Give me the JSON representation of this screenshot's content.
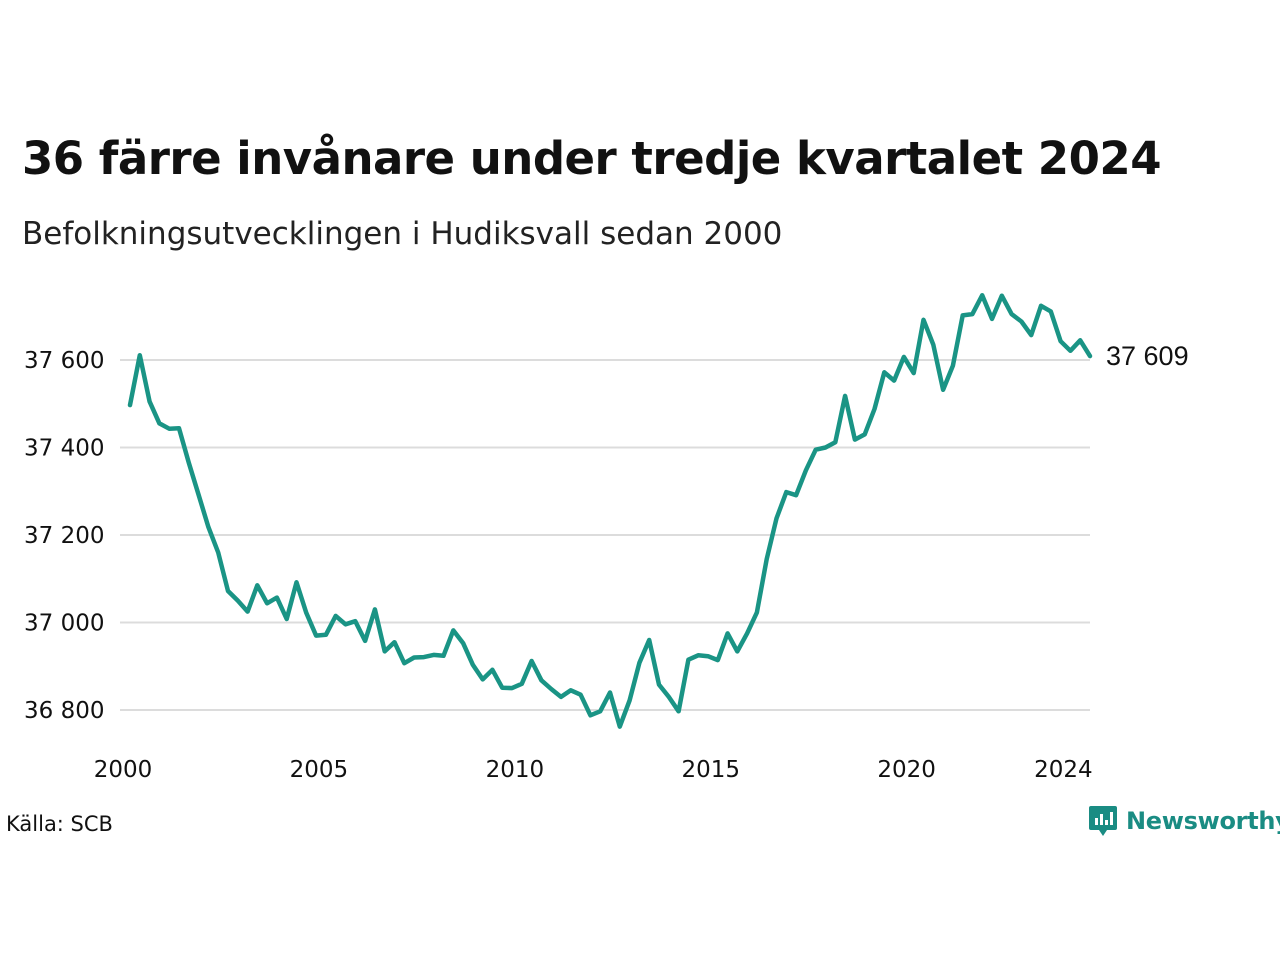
{
  "header": {
    "title": "36 färre invånare under tredje kvartalet 2024",
    "subtitle": "Befolkningsutvecklingen i Hudiksvall sedan 2000"
  },
  "footer": {
    "source": "Källa: SCB",
    "brand": "Newsworthy",
    "brand_icon": "newsworthy-logo-icon",
    "brand_color": "#1a8c83"
  },
  "chart_data": {
    "type": "line",
    "title": "36 färre invånare under tredje kvartalet 2024",
    "subtitle": "Befolkningsutvecklingen i Hudiksvall sedan 2000",
    "xlabel": "",
    "ylabel": "",
    "xlim": [
      2000,
      2024.5
    ],
    "ylim": [
      36720,
      37760
    ],
    "x_ticks": [
      2000,
      2005,
      2010,
      2015,
      2020,
      2024
    ],
    "x_tick_labels": [
      "2000",
      "2005",
      "2010",
      "2015",
      "2020",
      "2024"
    ],
    "y_ticks": [
      36800,
      37000,
      37200,
      37400,
      37600
    ],
    "y_tick_labels": [
      "36 800",
      "37 000",
      "37 200",
      "37 400",
      "37 600"
    ],
    "grid": true,
    "line_color": "#1a9485",
    "end_label": "37 609",
    "series": [
      {
        "name": "",
        "x": [
          2000.0,
          2000.25,
          2000.5,
          2000.75,
          2001.0,
          2001.25,
          2001.5,
          2001.75,
          2002.0,
          2002.25,
          2002.5,
          2002.75,
          2003.0,
          2003.25,
          2003.5,
          2003.75,
          2004.0,
          2004.25,
          2004.5,
          2004.75,
          2005.0,
          2005.25,
          2005.5,
          2005.75,
          2006.0,
          2006.25,
          2006.5,
          2006.75,
          2007.0,
          2007.25,
          2007.5,
          2007.75,
          2008.0,
          2008.25,
          2008.5,
          2008.75,
          2009.0,
          2009.25,
          2009.5,
          2009.75,
          2010.0,
          2010.25,
          2010.5,
          2010.75,
          2011.0,
          2011.25,
          2011.5,
          2011.75,
          2012.0,
          2012.25,
          2012.5,
          2012.75,
          2013.0,
          2013.25,
          2013.5,
          2013.75,
          2014.0,
          2014.25,
          2014.5,
          2014.75,
          2015.0,
          2015.25,
          2015.5,
          2015.75,
          2016.0,
          2016.25,
          2016.5,
          2016.75,
          2017.0,
          2017.25,
          2017.5,
          2017.75,
          2018.0,
          2018.25,
          2018.5,
          2018.75,
          2019.0,
          2019.25,
          2019.5,
          2019.75,
          2020.0,
          2020.25,
          2020.5,
          2020.75,
          2021.0,
          2021.25,
          2021.5,
          2021.75,
          2022.0,
          2022.25,
          2022.5,
          2022.75,
          2023.0,
          2023.25,
          2023.5,
          2023.75,
          2024.0,
          2024.25,
          2024.5
        ],
        "values": [
          37497,
          37611,
          37505,
          37455,
          37443,
          37444,
          37365,
          37292,
          37218,
          37160,
          37072,
          37050,
          37025,
          37085,
          37044,
          37057,
          37008,
          37092,
          37022,
          36970,
          36972,
          37015,
          36996,
          37003,
          36958,
          37030,
          36934,
          36955,
          36907,
          36920,
          36921,
          36926,
          36924,
          36982,
          36953,
          36903,
          36870,
          36892,
          36851,
          36850,
          36860,
          36912,
          36868,
          36848,
          36830,
          36845,
          36835,
          36788,
          36797,
          36840,
          36762,
          36822,
          36908,
          36960,
          36858,
          36830,
          36797,
          36915,
          36925,
          36923,
          36914,
          36975,
          36934,
          36975,
          37023,
          37145,
          37238,
          37298,
          37291,
          37348,
          37395,
          37400,
          37412,
          37518,
          37418,
          37430,
          37488,
          37572,
          37553,
          37607,
          37570,
          37692,
          37635,
          37532,
          37587,
          37702,
          37705,
          37748,
          37694,
          37747,
          37705,
          37688,
          37657,
          37724,
          37711,
          37643,
          37621,
          37645,
          37609
        ]
      }
    ]
  }
}
